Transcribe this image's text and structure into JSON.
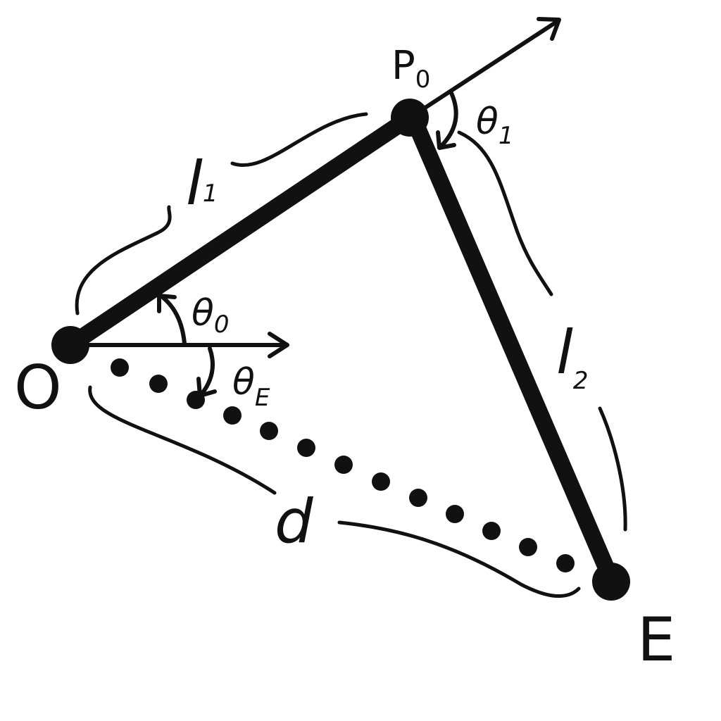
{
  "colors": {
    "ink": "#111111",
    "background": "#ffffff"
  },
  "points": {
    "origin": {
      "label": "O"
    },
    "joint": {
      "label": "P",
      "sub": "0"
    },
    "end_effector": {
      "label": "E"
    }
  },
  "links": {
    "link1": {
      "label": "l",
      "sub": "1"
    },
    "link2": {
      "label": "l",
      "sub": "2"
    },
    "distance": {
      "label": "d"
    }
  },
  "angles": {
    "theta0": {
      "label": "θ",
      "sub": "0"
    },
    "theta1": {
      "label": "θ",
      "sub": "1"
    },
    "thetaE": {
      "label": "θ",
      "sub": "E"
    }
  }
}
